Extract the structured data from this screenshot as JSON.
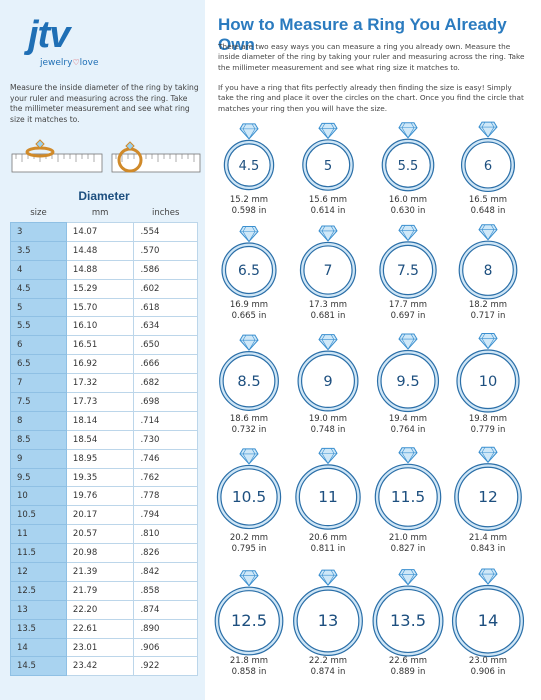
{
  "logo": {
    "brand": "jtv",
    "word1": "jewelry",
    "word2": "love"
  },
  "left": {
    "instructions": "Measure the inside diameter of the ring by taking  your ruler and measuring across the ring. Take the millimeter measurement and see what ring size it matches to."
  },
  "table": {
    "title": "Diameter",
    "headers": [
      "size",
      "mm",
      "inches"
    ],
    "rows": [
      [
        "3",
        "14.07",
        ".554"
      ],
      [
        "3.5",
        "14.48",
        ".570"
      ],
      [
        "4",
        "14.88",
        ".586"
      ],
      [
        "4.5",
        "15.29",
        ".602"
      ],
      [
        "5",
        "15.70",
        ".618"
      ],
      [
        "5.5",
        "16.10",
        ".634"
      ],
      [
        "6",
        "16.51",
        ".650"
      ],
      [
        "6.5",
        "16.92",
        ".666"
      ],
      [
        "7",
        "17.32",
        ".682"
      ],
      [
        "7.5",
        "17.73",
        ".698"
      ],
      [
        "8",
        "18.14",
        ".714"
      ],
      [
        "8.5",
        "18.54",
        ".730"
      ],
      [
        "9",
        "18.95",
        ".746"
      ],
      [
        "9.5",
        "19.35",
        ".762"
      ],
      [
        "10",
        "19.76",
        ".778"
      ],
      [
        "10.5",
        "20.17",
        ".794"
      ],
      [
        "11",
        "20.57",
        ".810"
      ],
      [
        "11.5",
        "20.98",
        ".826"
      ],
      [
        "12",
        "21.39",
        ".842"
      ],
      [
        "12.5",
        "21.79",
        ".858"
      ],
      [
        "13",
        "22.20",
        ".874"
      ],
      [
        "13.5",
        "22.61",
        ".890"
      ],
      [
        "14",
        "23.01",
        ".906"
      ],
      [
        "14.5",
        "23.42",
        ".922"
      ]
    ]
  },
  "right": {
    "title": "How to Measure a Ring You Already Own",
    "paragraphs": [
      "There are two easy ways you can measure a ring you already own. Measure the inside diameter of the ring by taking  your ruler and measuring across the ring. Take the millimeter measurement and see what ring size it matches to.",
      "If you have a ring that fits perfectly already then finding the size is easy! Simply take the ring and place it over the circles on the chart. Once you find the circle that matches your ring then you will have the size."
    ],
    "rings": [
      {
        "size": "4.5",
        "mm": "15.2 mm",
        "inches": "0.598 in"
      },
      {
        "size": "5",
        "mm": "15.6 mm",
        "inches": "0.614 in"
      },
      {
        "size": "5.5",
        "mm": "16.0 mm",
        "inches": "0.630 in"
      },
      {
        "size": "6",
        "mm": "16.5 mm",
        "inches": "0.648 in"
      },
      {
        "size": "6.5",
        "mm": "16.9 mm",
        "inches": "0.665 in"
      },
      {
        "size": "7",
        "mm": "17.3 mm",
        "inches": "0.681 in"
      },
      {
        "size": "7.5",
        "mm": "17.7 mm",
        "inches": "0.697 in"
      },
      {
        "size": "8",
        "mm": "18.2 mm",
        "inches": "0.717 in"
      },
      {
        "size": "8.5",
        "mm": "18.6 mm",
        "inches": "0.732 in"
      },
      {
        "size": "9",
        "mm": "19.0 mm",
        "inches": "0.748 in"
      },
      {
        "size": "9.5",
        "mm": "19.4 mm",
        "inches": "0.764 in"
      },
      {
        "size": "10",
        "mm": "19.8 mm",
        "inches": "0.779 in"
      },
      {
        "size": "10.5",
        "mm": "20.2 mm",
        "inches": "0.795 in"
      },
      {
        "size": "11",
        "mm": "20.6 mm",
        "inches": "0.811 in"
      },
      {
        "size": "11.5",
        "mm": "21.0 mm",
        "inches": "0.827 in"
      },
      {
        "size": "12",
        "mm": "21.4 mm",
        "inches": "0.843 in"
      },
      {
        "size": "12.5",
        "mm": "21.8 mm",
        "inches": "0.858 in"
      },
      {
        "size": "13",
        "mm": "22.2 mm",
        "inches": "0.874 in"
      },
      {
        "size": "13.5",
        "mm": "22.6 mm",
        "inches": "0.889 in"
      },
      {
        "size": "14",
        "mm": "23.0 mm",
        "inches": "0.906 in"
      }
    ]
  }
}
